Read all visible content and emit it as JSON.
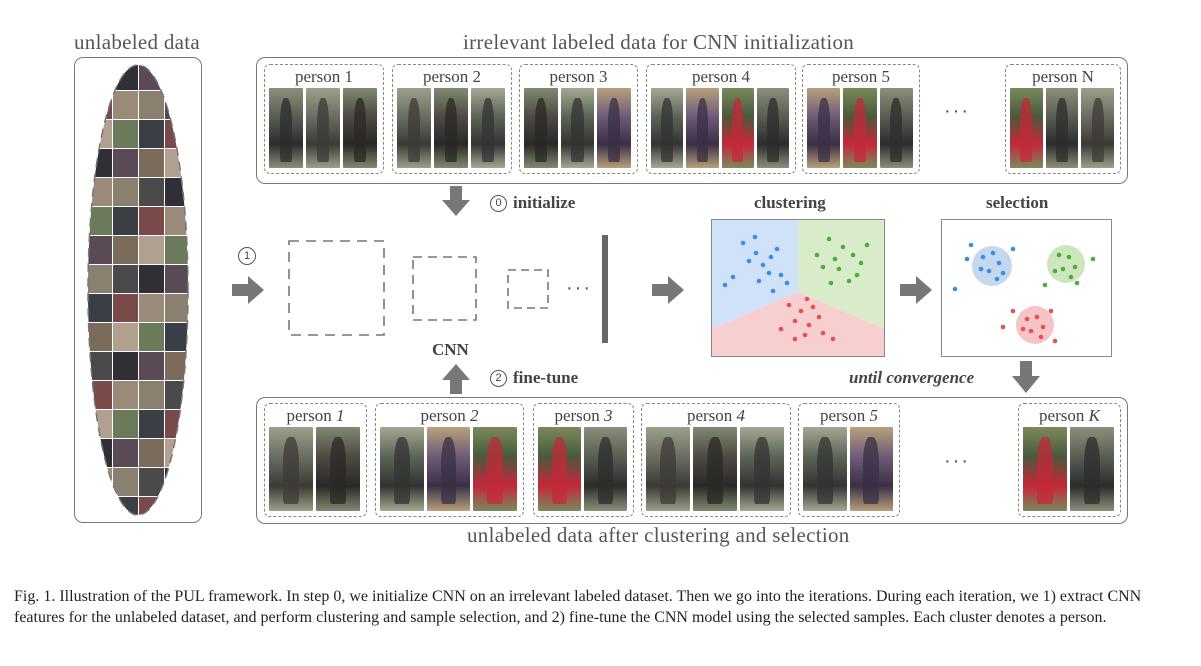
{
  "labels": {
    "unlabeled_data": "unlabeled data",
    "irrelevant": "irrelevant labeled data for CNN initialization",
    "after_clustering": "unlabeled data after clustering and selection",
    "initialize": "initialize",
    "initialize_num": "0",
    "finetune": "fine-tune",
    "finetune_num": "2",
    "step1_num": "1",
    "cnn": "CNN",
    "clustering": "clustering",
    "selection": "selection",
    "until_convergence": "until convergence",
    "ellipsis": "···"
  },
  "top_groups": [
    {
      "name": "person 1"
    },
    {
      "name": "person 2"
    },
    {
      "name": "person 3"
    },
    {
      "name": "person 4"
    },
    {
      "name": "person 5"
    },
    {
      "name": "person N"
    }
  ],
  "bottom_groups": [
    {
      "prefix": "person ",
      "index": "1"
    },
    {
      "prefix": "person ",
      "index": "2"
    },
    {
      "prefix": "person ",
      "index": "3"
    },
    {
      "prefix": "person ",
      "index": "4"
    },
    {
      "prefix": "person ",
      "index": "5"
    },
    {
      "prefix": "person ",
      "index": "K"
    }
  ],
  "colors": {
    "blue_region": "#cfe2f7",
    "green_region": "#d8ecc9",
    "red_region": "#f7cfd0",
    "blue_dot": "#3a8ee6",
    "green_dot": "#4caf3a",
    "red_dot": "#e8504a",
    "arrow": "#777777"
  },
  "caption": "Fig. 1.  Illustration of the PUL framework. In step 0, we initialize CNN on an irrelevant labeled dataset. Then we go into the iterations. During each iteration, we 1) extract CNN features for the unlabeled dataset, and perform clustering and sample selection, and 2) fine-tune the CNN model using the selected samples. Each cluster denotes a person."
}
